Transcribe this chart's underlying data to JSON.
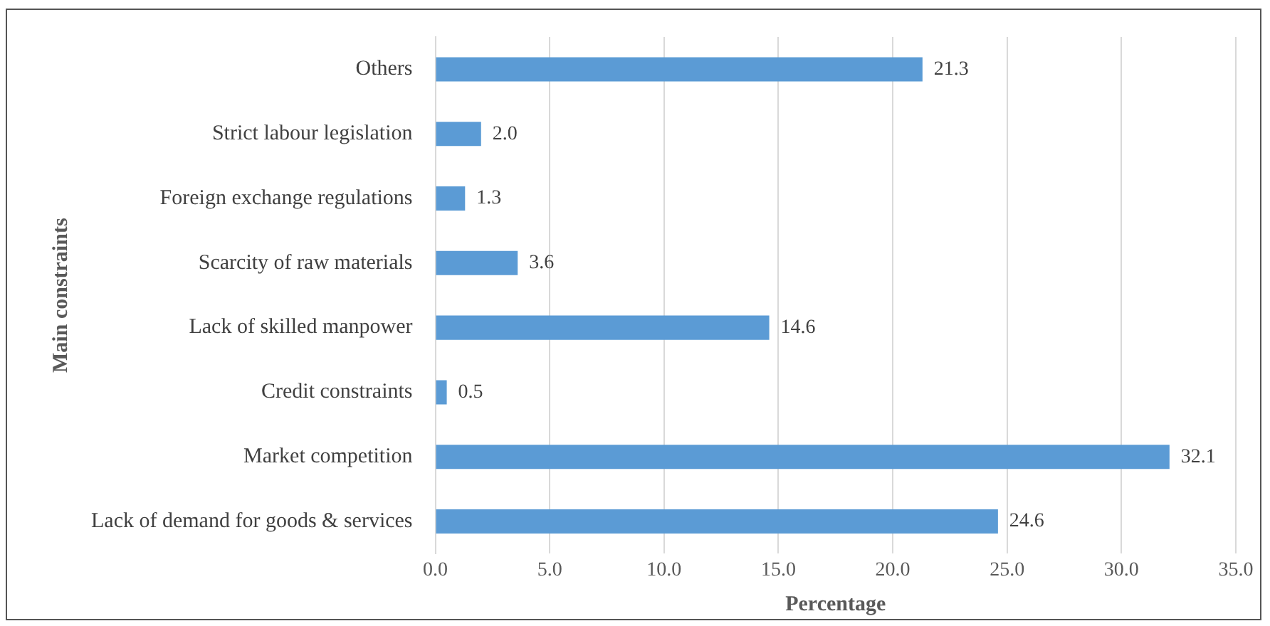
{
  "chart_data": {
    "type": "bar",
    "orientation": "horizontal",
    "xlabel": "Percentage",
    "ylabel": "Main constraints",
    "categories": [
      "Others",
      "Strict labour legislation",
      "Foreign exchange regulations",
      "Scarcity of raw materials",
      "Lack of skilled manpower",
      "Credit constraints",
      "Market competition",
      "Lack of demand for goods & services"
    ],
    "values": [
      21.3,
      2.0,
      1.3,
      3.6,
      14.6,
      0.5,
      32.1,
      24.6
    ],
    "value_labels": [
      "21.3",
      "2.0",
      "1.3",
      "3.6",
      "14.6",
      "0.5",
      "32.1",
      "24.6"
    ],
    "color": "#5b9bd5",
    "xlim": [
      0,
      35
    ],
    "xticks": [
      {
        "value": 0,
        "label": "0.0"
      },
      {
        "value": 5,
        "label": "5.0"
      },
      {
        "value": 10,
        "label": "10.0"
      },
      {
        "value": 15,
        "label": "15.0"
      },
      {
        "value": 20,
        "label": "20.0"
      },
      {
        "value": 25,
        "label": "25.0"
      },
      {
        "value": 30,
        "label": "30.0"
      },
      {
        "value": 35,
        "label": "35.0"
      }
    ],
    "grid": "x",
    "legend": false
  }
}
